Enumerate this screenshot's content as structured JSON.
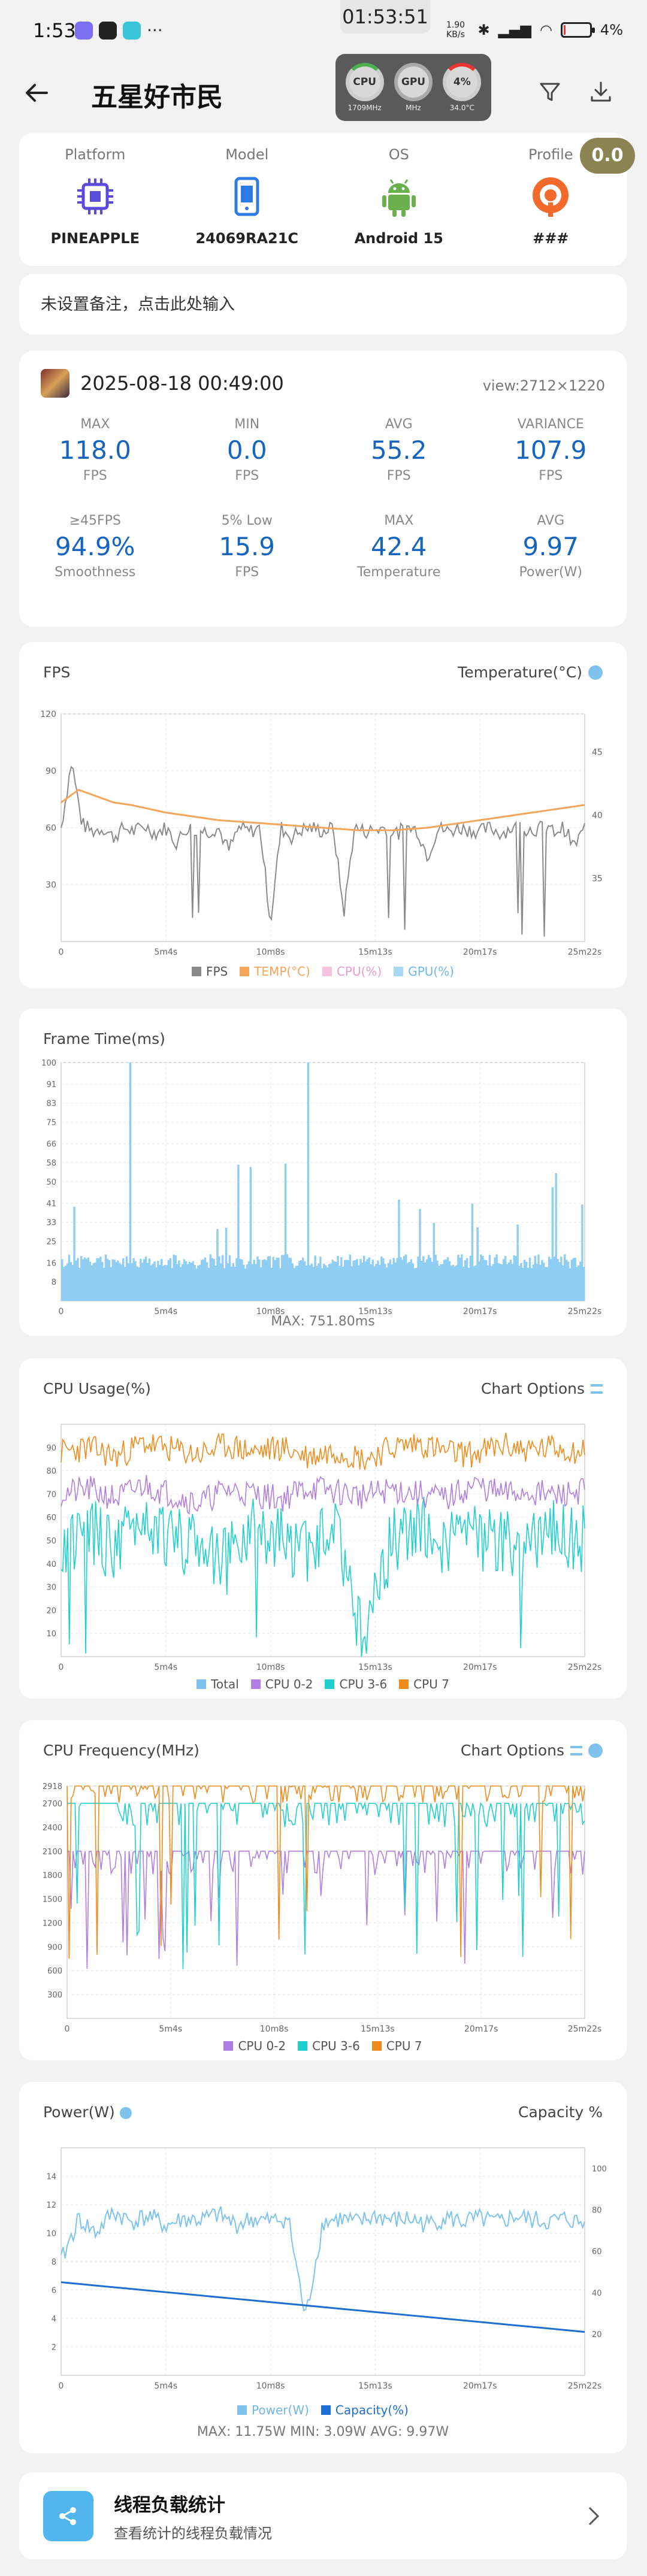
{
  "status_bar": {
    "time": "1:53",
    "center_time": "01:53:51",
    "net_speed": "1.90 KB/s",
    "battery": "4",
    "battery_unit": "%"
  },
  "monitor": {
    "cpu": {
      "label": "CPU",
      "sub": "1709MHz"
    },
    "gpu": {
      "label": "GPU",
      "sub": "MHz"
    },
    "battery": {
      "label": "4%",
      "sub": "34.0°C"
    }
  },
  "header": {
    "title": "五星好市民",
    "score": "0.0"
  },
  "device": [
    {
      "label": "Platform",
      "value": "PINEAPPLE",
      "icon": "chip-icon"
    },
    {
      "label": "Model",
      "value": "24069RA21C",
      "icon": "phone-icon"
    },
    {
      "label": "OS",
      "value": "Android 15",
      "icon": "android-icon"
    },
    {
      "label": "Profile",
      "value": "###",
      "icon": "profile-icon"
    }
  ],
  "remark": {
    "text": "未设置备注，点击此处输入"
  },
  "session": {
    "date": "2025-08-18 00:49:00",
    "view": "view:2712×1220",
    "stats": [
      {
        "top": "MAX",
        "value": "118.0",
        "bottom": "FPS"
      },
      {
        "top": "MIN",
        "value": "0.0",
        "bottom": "FPS"
      },
      {
        "top": "AVG",
        "value": "55.2",
        "bottom": "FPS"
      },
      {
        "top": "VARIANCE",
        "value": "107.9",
        "bottom": "FPS"
      },
      {
        "top": "≥45FPS",
        "value": "94.9%",
        "bottom": "Smoothness"
      },
      {
        "top": "5% Low",
        "value": "15.9",
        "bottom": "FPS"
      },
      {
        "top": "MAX",
        "value": "42.4",
        "bottom": "Temperature"
      },
      {
        "top": "AVG",
        "value": "9.97",
        "bottom": "Power(W)"
      }
    ]
  },
  "colors": {
    "accent": "#1565c0",
    "fps": "#8a8a8a",
    "temp": "#f5a55a",
    "cpu_total": "#7ec3ee",
    "cpu02": "#b07de0",
    "cpu36": "#1fcfcf",
    "cpu7": "#f08a1a",
    "power": "#7ec3ee",
    "capacity": "#1c6fd0"
  },
  "chart_data": [
    {
      "type": "line",
      "title": "FPS",
      "right_title": "Temperature(°C)",
      "x_ticks": [
        "0",
        "5m4s",
        "10m8s",
        "15m13s",
        "20m17s",
        "25m22s"
      ],
      "y_ticks": [
        "30",
        "60",
        "90",
        "120"
      ],
      "y_right_ticks": [
        "35",
        "40",
        "45"
      ],
      "ylim": [
        0,
        120
      ],
      "y_right_lim": [
        30,
        48
      ],
      "series": [
        {
          "name": "FPS",
          "values": [
            60,
            95,
            62,
            58,
            60,
            55,
            60,
            58,
            61,
            57,
            60,
            52,
            60,
            59,
            58,
            60,
            48,
            60,
            58,
            60,
            10,
            60,
            55,
            59,
            60,
            58,
            60,
            15,
            60,
            58,
            59,
            60,
            57,
            60,
            59,
            45,
            60,
            58,
            60,
            59,
            58,
            60,
            57,
            60,
            60,
            59,
            60,
            58,
            60,
            50,
            60
          ]
        },
        {
          "name": "TEMP(°C)",
          "values": [
            41,
            42,
            41.5,
            41,
            40.8,
            40.5,
            40.2,
            40,
            39.8,
            39.6,
            39.5,
            39.4,
            39.3,
            39.2,
            39.1,
            39,
            38.9,
            38.8,
            38.8,
            38.8,
            38.9,
            39,
            39.2,
            39.4,
            39.6,
            39.8,
            40,
            40.2,
            40.4,
            40.6,
            40.8
          ]
        },
        {
          "name": "CPU(%)",
          "values": []
        },
        {
          "name": "GPU(%)",
          "values": []
        }
      ]
    },
    {
      "type": "bar",
      "title": "Frame Time(ms)",
      "x_ticks": [
        "0",
        "5m4s",
        "10m8s",
        "15m13s",
        "20m17s",
        "25m22s"
      ],
      "y_ticks": [
        "8",
        "16",
        "25",
        "33",
        "41",
        "50",
        "58",
        "66",
        "75",
        "83",
        "91",
        "100"
      ],
      "footer": "MAX: 751.80ms"
    },
    {
      "type": "line",
      "title": "CPU Usage(%)",
      "right_title": "Chart Options",
      "x_ticks": [
        "0",
        "5m4s",
        "10m8s",
        "15m13s",
        "20m17s",
        "25m22s"
      ],
      "y_ticks": [
        "10",
        "20",
        "30",
        "40",
        "50",
        "60",
        "70",
        "80",
        "90"
      ],
      "ylim": [
        0,
        100
      ],
      "series": [
        {
          "name": "Total",
          "values": []
        },
        {
          "name": "CPU 0-2",
          "values": [
            70,
            72,
            68,
            74,
            70,
            66,
            72,
            70,
            68,
            73,
            71,
            69,
            72,
            70,
            68,
            74,
            70,
            71,
            69,
            72
          ]
        },
        {
          "name": "CPU 3-6",
          "values": [
            50,
            55,
            45,
            60,
            48,
            52,
            40,
            58,
            50,
            46,
            54,
            5,
            50,
            56,
            48,
            52,
            50,
            47,
            55,
            50
          ]
        },
        {
          "name": "CPU 7",
          "values": [
            88,
            90,
            86,
            92,
            89,
            87,
            91,
            88,
            90,
            86,
            89,
            85,
            90,
            92,
            88,
            87,
            91,
            89,
            90,
            88
          ]
        }
      ]
    },
    {
      "type": "line",
      "title": "CPU Frequency(MHz)",
      "right_title": "Chart Options",
      "x_ticks": [
        "0",
        "5m4s",
        "10m8s",
        "15m13s",
        "20m17s",
        "25m22s"
      ],
      "y_ticks": [
        "300",
        "600",
        "900",
        "1200",
        "1500",
        "1800",
        "2100",
        "2400",
        "2700",
        "2918"
      ],
      "series": [
        {
          "name": "CPU 0-2",
          "values": []
        },
        {
          "name": "CPU 3-6",
          "values": []
        },
        {
          "name": "CPU 7",
          "values": []
        }
      ]
    },
    {
      "type": "line",
      "title": "Power(W)",
      "right_title": "Capacity %",
      "x_ticks": [
        "0",
        "5m4s",
        "10m8s",
        "15m13s",
        "20m17s",
        "25m22s"
      ],
      "y_ticks": [
        "2",
        "4",
        "6",
        "8",
        "10",
        "12",
        "14"
      ],
      "y_right_ticks": [
        "20",
        "40",
        "60",
        "80",
        "100"
      ],
      "series": [
        {
          "name": "Power(W)",
          "values": [
            8,
            11,
            10,
            11.5,
            10.8,
            11.2,
            10.5,
            11,
            10.9,
            11.3,
            10.6,
            11,
            10.8,
            11.1,
            4,
            10.8,
            11,
            10.7,
            11.2,
            10.9,
            11,
            10.6,
            11.1,
            10.8,
            11,
            10.7,
            11.2,
            10.9,
            10.8,
            11,
            10.6
          ]
        },
        {
          "name": "Capacity(%)",
          "values": [
            45,
            44,
            43,
            42,
            41,
            40,
            39,
            38,
            37,
            36,
            35,
            34,
            33,
            32,
            31,
            30,
            29,
            28,
            27,
            26,
            25,
            24,
            23,
            22,
            21
          ]
        }
      ],
      "footer": "MAX: 11.75W   MIN: 3.09W   AVG: 9.97W"
    }
  ],
  "thread": {
    "title": "线程负载统计",
    "subtitle": "查看统计的线程负载情况"
  }
}
